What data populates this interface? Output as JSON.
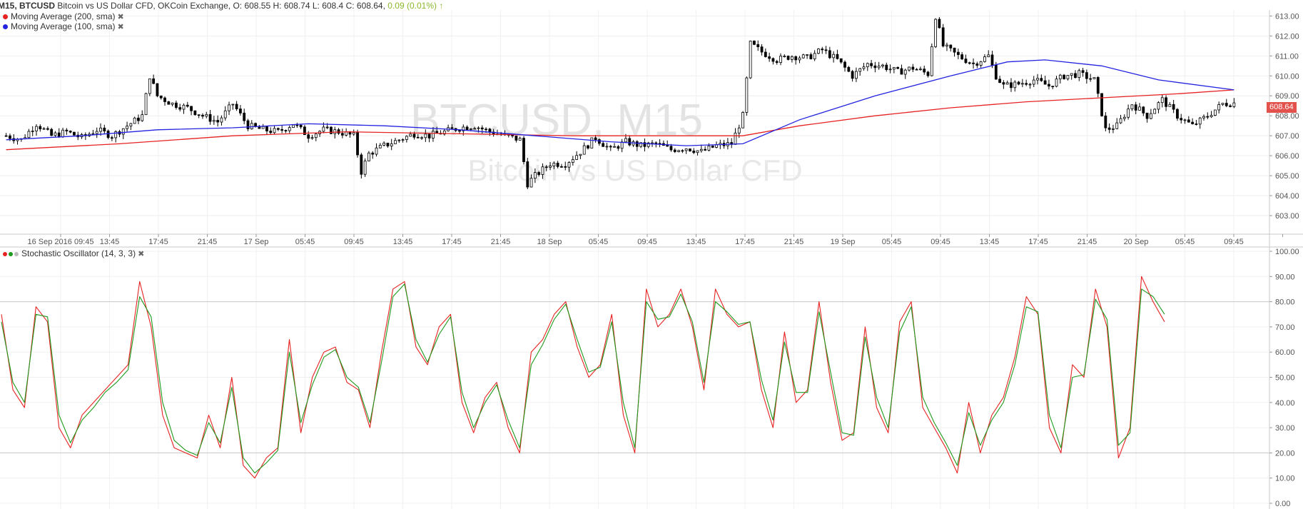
{
  "header": {
    "symbol_line": "M15, BTCUSD",
    "description": "Bitcoin vs US Dollar CFD, OKCoin Exchange, O: 608.55 H: 608.74 L: 608.4 C: 608.64,",
    "change": "0.09 (0.01%)",
    "change_icon": "arrow-up-icon"
  },
  "indicators": {
    "ma200": {
      "label": "Moving Average (200, sma)",
      "color": "#e62222"
    },
    "ma100": {
      "label": "Moving Average (100, sma)",
      "color": "#2323e0"
    },
    "stoch": {
      "label": "Stochastic Oscillator (14, 3, 3)",
      "k_color": "#e62222",
      "d_color": "#1e9a1e"
    },
    "close_icon": "close-icon"
  },
  "watermark": {
    "main": "BTCUSD, M15",
    "sub": "Bitcoin vs US Dollar CFD"
  },
  "price_tag": "608.64",
  "chart_data": [
    {
      "type": "candlestick",
      "title": "BTCUSD, M15",
      "ylim": [
        602.5,
        613.3
      ],
      "y_ticks": [
        "613.00",
        "612.00",
        "611.00",
        "610.00",
        "609.00",
        "608.00",
        "607.00",
        "606.00",
        "605.00",
        "604.00",
        "603.00"
      ],
      "x_tick_labels": [
        "16 Sep 2016 09:45",
        "13:45",
        "17:45",
        "21:45",
        "17 Sep",
        "05:45",
        "09:45",
        "13:45",
        "17:45",
        "21:45",
        "18 Sep",
        "05:45",
        "09:45",
        "13:45",
        "17:45",
        "21:45",
        "19 Sep",
        "05:45",
        "09:45",
        "13:45",
        "17:45",
        "21:45",
        "20 Sep",
        "05:45",
        "09:45"
      ],
      "last_close": 608.64,
      "close_path": [
        [
          0,
          607.0
        ],
        [
          4,
          606.8
        ],
        [
          8,
          607.6
        ],
        [
          12,
          607.0
        ],
        [
          16,
          607.2
        ],
        [
          20,
          606.9
        ],
        [
          24,
          607.3
        ],
        [
          28,
          607.0
        ],
        [
          32,
          607.5
        ],
        [
          36,
          608.0
        ],
        [
          38,
          610.0
        ],
        [
          40,
          609.0
        ],
        [
          44,
          608.6
        ],
        [
          48,
          608.4
        ],
        [
          52,
          608.0
        ],
        [
          56,
          607.7
        ],
        [
          60,
          608.6
        ],
        [
          64,
          607.5
        ],
        [
          68,
          607.3
        ],
        [
          72,
          607.2
        ],
        [
          76,
          607.6
        ],
        [
          80,
          607.0
        ],
        [
          84,
          607.3
        ],
        [
          88,
          607.2
        ],
        [
          92,
          607.0
        ],
        [
          94,
          605.2
        ],
        [
          96,
          606.1
        ],
        [
          100,
          606.5
        ],
        [
          104,
          606.8
        ],
        [
          108,
          607.1
        ],
        [
          112,
          607.0
        ],
        [
          116,
          607.2
        ],
        [
          120,
          607.4
        ],
        [
          124,
          607.5
        ],
        [
          128,
          607.2
        ],
        [
          132,
          607.0
        ],
        [
          136,
          606.8
        ],
        [
          138,
          604.6
        ],
        [
          140,
          605.0
        ],
        [
          144,
          605.6
        ],
        [
          148,
          605.6
        ],
        [
          152,
          606.2
        ],
        [
          156,
          606.9
        ],
        [
          160,
          606.3
        ],
        [
          164,
          606.7
        ],
        [
          168,
          606.5
        ],
        [
          172,
          606.6
        ],
        [
          176,
          606.3
        ],
        [
          180,
          606.4
        ],
        [
          184,
          606.2
        ],
        [
          188,
          606.5
        ],
        [
          192,
          606.6
        ],
        [
          195,
          608.0
        ],
        [
          197,
          611.6
        ],
        [
          200,
          611.2
        ],
        [
          204,
          610.8
        ],
        [
          208,
          611.0
        ],
        [
          212,
          610.9
        ],
        [
          216,
          611.3
        ],
        [
          220,
          610.8
        ],
        [
          224,
          610.0
        ],
        [
          228,
          610.6
        ],
        [
          232,
          610.5
        ],
        [
          236,
          610.2
        ],
        [
          240,
          610.4
        ],
        [
          244,
          610.1
        ],
        [
          246,
          613.0
        ],
        [
          248,
          611.5
        ],
        [
          252,
          611.0
        ],
        [
          256,
          610.6
        ],
        [
          260,
          611.0
        ],
        [
          262,
          610.0
        ],
        [
          264,
          609.5
        ],
        [
          268,
          609.6
        ],
        [
          272,
          609.8
        ],
        [
          276,
          609.5
        ],
        [
          280,
          610.0
        ],
        [
          284,
          610.1
        ],
        [
          288,
          609.8
        ],
        [
          291,
          607.3
        ],
        [
          294,
          607.5
        ],
        [
          298,
          608.6
        ],
        [
          302,
          608.0
        ],
        [
          306,
          608.8
        ],
        [
          310,
          608.0
        ],
        [
          314,
          607.5
        ],
        [
          318,
          608.0
        ],
        [
          322,
          608.6
        ],
        [
          325,
          608.64
        ]
      ],
      "series": [
        {
          "name": "Moving Average (200, sma)",
          "color": "#e62222",
          "points": [
            [
              0,
              606.3
            ],
            [
              30,
              606.6
            ],
            [
              60,
              607.0
            ],
            [
              90,
              607.2
            ],
            [
              120,
              607.1
            ],
            [
              150,
              607.0
            ],
            [
              180,
              607.0
            ],
            [
              195,
              607.0
            ],
            [
              210,
              607.5
            ],
            [
              230,
              608.0
            ],
            [
              250,
              608.4
            ],
            [
              270,
              608.7
            ],
            [
              290,
              608.9
            ],
            [
              310,
              609.1
            ],
            [
              325,
              609.3
            ]
          ]
        },
        {
          "name": "Moving Average (100, sma)",
          "color": "#2323e0",
          "points": [
            [
              0,
              606.8
            ],
            [
              20,
              607.0
            ],
            [
              40,
              607.3
            ],
            [
              60,
              607.4
            ],
            [
              80,
              607.6
            ],
            [
              100,
              607.5
            ],
            [
              120,
              607.3
            ],
            [
              140,
              607.0
            ],
            [
              160,
              606.7
            ],
            [
              180,
              606.5
            ],
            [
              195,
              606.6
            ],
            [
              210,
              607.8
            ],
            [
              230,
              609.0
            ],
            [
              250,
              610.0
            ],
            [
              265,
              610.7
            ],
            [
              275,
              610.8
            ],
            [
              290,
              610.5
            ],
            [
              305,
              609.8
            ],
            [
              325,
              609.3
            ]
          ]
        }
      ]
    },
    {
      "type": "line",
      "title": "Stochastic Oscillator (14, 3, 3)",
      "ylim": [
        0,
        100
      ],
      "y_ticks": [
        "100.00",
        "90.00",
        "80.00",
        "70.00",
        "60.00",
        "50.00",
        "40.00",
        "30.00",
        "20.00",
        "10.00",
        "0.00"
      ],
      "reference_lines": [
        20,
        80
      ],
      "series": [
        {
          "name": "%K",
          "color": "#e62222",
          "values": [
            75,
            45,
            38,
            78,
            72,
            30,
            22,
            35,
            40,
            45,
            50,
            55,
            88,
            70,
            35,
            22,
            20,
            18,
            35,
            22,
            50,
            15,
            10,
            18,
            22,
            65,
            28,
            50,
            60,
            62,
            48,
            45,
            30,
            60,
            85,
            88,
            62,
            55,
            70,
            75,
            40,
            28,
            42,
            48,
            30,
            20,
            60,
            65,
            75,
            80,
            62,
            50,
            55,
            75,
            35,
            20,
            85,
            70,
            75,
            85,
            70,
            45,
            85,
            75,
            70,
            72,
            45,
            30,
            68,
            40,
            45,
            80,
            48,
            25,
            28,
            70,
            38,
            28,
            72,
            80,
            38,
            30,
            22,
            12,
            40,
            20,
            35,
            42,
            58,
            82,
            75,
            30,
            20,
            55,
            50,
            85,
            70,
            18,
            30,
            90,
            80,
            72
          ]
        },
        {
          "name": "%D",
          "color": "#1e9a1e",
          "values": [
            72,
            48,
            40,
            75,
            74,
            35,
            24,
            33,
            38,
            44,
            48,
            53,
            82,
            74,
            40,
            25,
            21,
            19,
            32,
            24,
            46,
            18,
            12,
            16,
            21,
            60,
            32,
            47,
            58,
            61,
            50,
            46,
            32,
            56,
            82,
            87,
            65,
            56,
            67,
            74,
            44,
            30,
            40,
            47,
            33,
            22,
            55,
            63,
            73,
            79,
            65,
            52,
            54,
            72,
            40,
            22,
            80,
            73,
            74,
            83,
            72,
            48,
            80,
            76,
            71,
            72,
            49,
            33,
            64,
            44,
            44,
            76,
            52,
            28,
            27,
            66,
            42,
            30,
            68,
            78,
            42,
            32,
            24,
            15,
            36,
            23,
            33,
            40,
            55,
            78,
            76,
            35,
            22,
            50,
            51,
            81,
            73,
            23,
            28,
            85,
            82,
            75
          ]
        }
      ]
    }
  ]
}
